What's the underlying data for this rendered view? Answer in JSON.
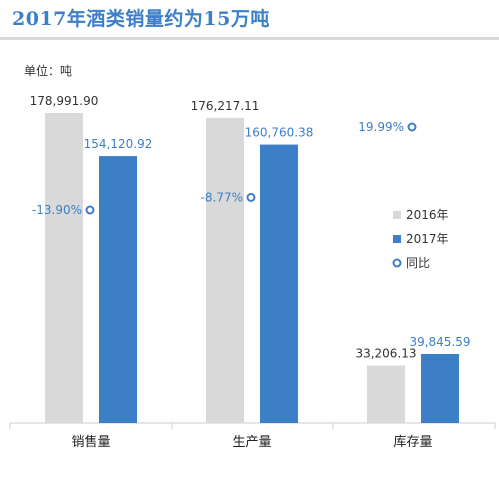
{
  "title": "2017年酒类销量约为15万吨",
  "unit_label": "单位：吨",
  "colors": {
    "series_2016": "#d9d9d9",
    "series_2017": "#3d7fc6",
    "yoy_marker": "#3d7fc6",
    "axis": "#cccccc"
  },
  "chart_data": {
    "type": "bar",
    "categories": [
      "销售量",
      "生产量",
      "库存量"
    ],
    "series": [
      {
        "name": "2016年",
        "values": [
          178991.9,
          176217.11,
          33206.13
        ],
        "labels": [
          "178,991.90",
          "176,217.11",
          "33,206.13"
        ]
      },
      {
        "name": "2017年",
        "values": [
          154120.92,
          160760.38,
          39845.59
        ],
        "labels": [
          "154,120.92",
          "160,760.38",
          "39,845.59"
        ]
      }
    ],
    "yoy": {
      "name": "同比",
      "values": [
        -13.9,
        -8.77,
        19.99
      ],
      "labels": [
        "-13.90%",
        "-8.77%",
        "19.99%"
      ]
    },
    "ylabel": "单位：吨",
    "ylim": [
      0,
      190000
    ],
    "grid": false,
    "legend": "right",
    "legend_entries": [
      "2016年",
      "2017年",
      "同比"
    ]
  }
}
